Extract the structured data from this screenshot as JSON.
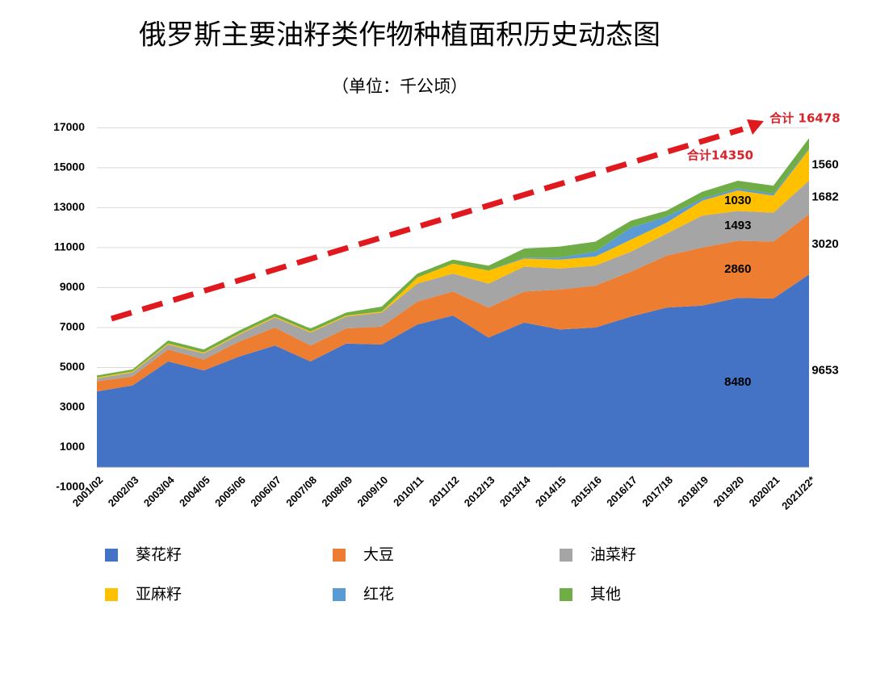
{
  "chart_data": {
    "type": "stacked_area",
    "title": "俄罗斯主要油籽类作物种植面积历史动态图",
    "subtitle": "（单位：千公顷）",
    "categories": [
      "2001/02",
      "2002/03",
      "2003/04",
      "2004/05",
      "2005/06",
      "2006/07",
      "2007/08",
      "2008/09",
      "2009/10",
      "2010/11",
      "2011/12",
      "2012/13",
      "2013/14",
      "2014/15",
      "2015/16",
      "2016/17",
      "2017/18",
      "2018/19",
      "2019/20",
      "2020/21",
      "2021/22*"
    ],
    "series": [
      {
        "name": "葵花籽",
        "color": "#4472c4",
        "data_labels": true,
        "values": [
          3800,
          4100,
          5300,
          4850,
          5550,
          6100,
          5300,
          6200,
          6150,
          7150,
          7600,
          6500,
          7250,
          6900,
          7000,
          7550,
          8000,
          8100,
          8480,
          8450,
          9653
        ]
      },
      {
        "name": "大豆",
        "color": "#ed7d31",
        "data_labels": true,
        "values": [
          500,
          450,
          600,
          550,
          750,
          900,
          800,
          750,
          900,
          1150,
          1200,
          1500,
          1550,
          2000,
          2100,
          2250,
          2600,
          2900,
          2860,
          2850,
          3020
        ]
      },
      {
        "name": "油菜籽",
        "color": "#a5a5a5",
        "data_labels": true,
        "values": [
          150,
          200,
          250,
          300,
          350,
          500,
          650,
          600,
          700,
          900,
          900,
          1200,
          1250,
          1050,
          1000,
          1000,
          1100,
          1600,
          1493,
          1450,
          1682
        ]
      },
      {
        "name": "亚麻籽",
        "color": "#ffc000",
        "data_labels": true,
        "values": [
          50,
          50,
          50,
          50,
          50,
          50,
          50,
          50,
          50,
          300,
          500,
          650,
          400,
          450,
          450,
          600,
          550,
          750,
          1030,
          850,
          1560
        ]
      },
      {
        "name": "红花",
        "color": "#5b9bd5",
        "data_labels": false,
        "values": [
          0,
          0,
          0,
          0,
          0,
          0,
          0,
          0,
          0,
          0,
          0,
          0,
          50,
          100,
          250,
          600,
          300,
          100,
          100,
          100,
          50
        ]
      },
      {
        "name": "其他",
        "color": "#70ad47",
        "data_labels": false,
        "values": [
          100,
          100,
          150,
          150,
          150,
          150,
          150,
          150,
          250,
          200,
          200,
          250,
          450,
          550,
          500,
          350,
          300,
          350,
          387,
          400,
          513
        ]
      }
    ],
    "labeled_categories": [
      "2019/20",
      "2021/22*"
    ],
    "annotations": [
      "合计14350",
      "合计 16478"
    ],
    "ylim": [
      -1000,
      17500
    ],
    "yticks": [
      -1000,
      1000,
      3000,
      5000,
      7000,
      9000,
      11000,
      13000,
      15000,
      17000
    ],
    "grid": true
  }
}
